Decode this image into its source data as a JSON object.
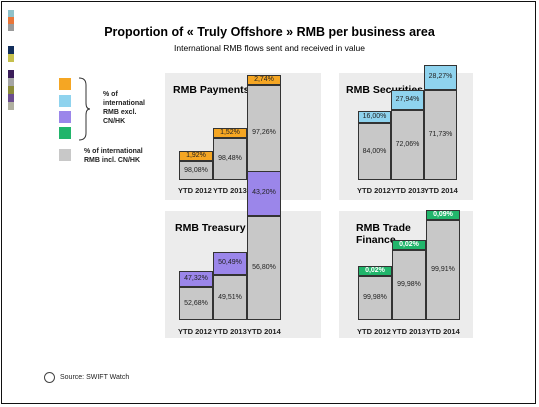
{
  "title": "Proportion of « Truly Offshore » RMB per business area",
  "subtitle": "International RMB flows sent and received in value",
  "legend": {
    "excl_label": "% of international RMB excl. CN/HK",
    "incl_label": "% of international RMB incl. CN/HK"
  },
  "source": "Source: SWIFT Watch",
  "colors": {
    "payments": "#f5a623",
    "securities": "#8fd3ee",
    "treasury": "#9b86ea",
    "trade": "#21b56b",
    "base": "#c8c8c8",
    "panel_bg": "#ececec"
  },
  "chart_data": [
    {
      "type": "bar",
      "title": "RMB Payments",
      "categories": [
        "YTD 2012",
        "YTD 2013",
        "YTD 2014"
      ],
      "series": [
        {
          "name": "% of international RMB incl. CN/HK",
          "values": [
            98.08,
            98.48,
            97.26
          ]
        },
        {
          "name": "% of international RMB excl. CN/HK",
          "values": [
            1.92,
            1.52,
            2.74
          ]
        }
      ],
      "labels": [
        [
          "98,08%",
          "1,92%"
        ],
        [
          "98,48%",
          "1,52%"
        ],
        [
          "97,26%",
          "2,74%"
        ]
      ]
    },
    {
      "type": "bar",
      "title": "RMB Securities",
      "categories": [
        "YTD 2012",
        "YTD 2013",
        "YTD 2014"
      ],
      "series": [
        {
          "name": "% of international RMB incl. CN/HK",
          "values": [
            84.0,
            72.06,
            71.73
          ]
        },
        {
          "name": "% of international RMB excl. CN/HK",
          "values": [
            16.0,
            27.94,
            28.27
          ]
        }
      ],
      "labels": [
        [
          "84,00%",
          "16,00%"
        ],
        [
          "72,06%",
          "27,94%"
        ],
        [
          "71,73%",
          "28,27%"
        ]
      ]
    },
    {
      "type": "bar",
      "title": "RMB Treasury",
      "categories": [
        "YTD 2012",
        "YTD 2013",
        "YTD 2014"
      ],
      "series": [
        {
          "name": "% of international RMB incl. CN/HK",
          "values": [
            52.68,
            49.51,
            56.8
          ]
        },
        {
          "name": "% of international RMB excl. CN/HK",
          "values": [
            47.32,
            50.49,
            43.2
          ]
        }
      ],
      "labels": [
        [
          "52,68%",
          "47,32%"
        ],
        [
          "49,51%",
          "50,49%"
        ],
        [
          "56,80%",
          "43,20%"
        ]
      ]
    },
    {
      "type": "bar",
      "title": "RMB Trade Finance",
      "categories": [
        "YTD 2012",
        "YTD 2013",
        "YTD 2014"
      ],
      "series": [
        {
          "name": "% of international RMB incl. CN/HK",
          "values": [
            99.98,
            99.98,
            99.91
          ]
        },
        {
          "name": "% of international RMB excl. CN/HK",
          "values": [
            0.02,
            0.02,
            0.09
          ]
        }
      ],
      "labels": [
        [
          "99,98%",
          "0,02%"
        ],
        [
          "99,98%",
          "0,02%"
        ],
        [
          "99,91%",
          "0,09%"
        ]
      ]
    }
  ]
}
